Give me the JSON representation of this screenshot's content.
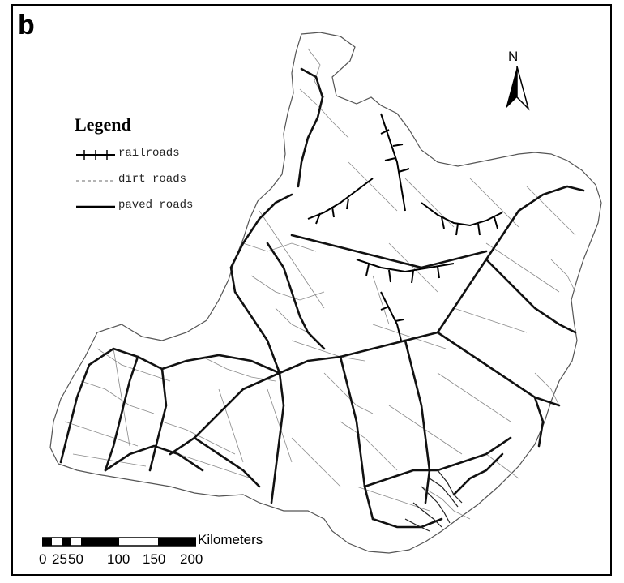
{
  "panel_label": "b",
  "legend": {
    "title": "Legend",
    "items": [
      {
        "label": "railroads",
        "style": "railroad"
      },
      {
        "label": "dirt roads",
        "style": "dirt"
      },
      {
        "label": "paved roads",
        "style": "paved"
      }
    ]
  },
  "north_arrow": {
    "letter": "N"
  },
  "scale_bar": {
    "unit": "Kilometers",
    "ticks": [
      "0",
      "25",
      "50",
      "100",
      "150",
      "200"
    ]
  },
  "colors": {
    "paved": "#111111",
    "dirt": "#8a8a8a",
    "railroad": "#000000",
    "outline": "#555555"
  }
}
